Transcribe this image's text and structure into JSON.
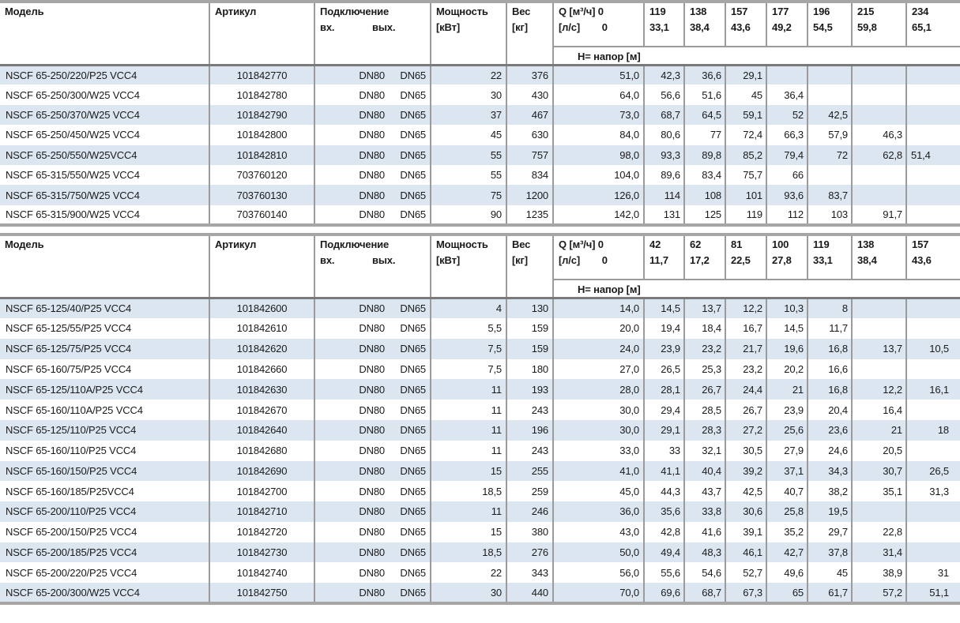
{
  "colors": {
    "band_row": "#dce6f1",
    "border_gray": "#a6a6a6",
    "border_dark": "#7a7a7a",
    "grid_line": "#9b9b9b"
  },
  "tables": [
    {
      "headers": {
        "model": "Модель",
        "article": "Артикул",
        "connection": "Подключение",
        "inlet": "вх.",
        "outlet": "вых.",
        "power": "Мощность",
        "power_unit": "[кВт]",
        "weight": "Вес",
        "weight_unit": "[кг]",
        "q_line1": "Q [м³/ч] 0",
        "q_line2": "[л/с]        0",
        "head_row": "Н= напор [м]"
      },
      "flow_columns": [
        {
          "m3h": "119",
          "ls": "33,1"
        },
        {
          "m3h": "138",
          "ls": "38,4"
        },
        {
          "m3h": "157",
          "ls": "43,6"
        },
        {
          "m3h": "177",
          "ls": "49,2"
        },
        {
          "m3h": "196",
          "ls": "54,5"
        },
        {
          "m3h": "215",
          "ls": "59,8"
        },
        {
          "m3h": "234",
          "ls": "65,1"
        }
      ],
      "rows": [
        {
          "model": "NSCF 65-250/220/P25 VCC4",
          "article": "101842770",
          "dn_in": "DN80",
          "dn_out": "DN65",
          "power": "22",
          "weight": "376",
          "q0": "51,0",
          "heads": [
            "42,3",
            "36,6",
            "29,1",
            "",
            "",
            "",
            ""
          ]
        },
        {
          "model": "NSCF 65-250/300/W25 VCC4",
          "article": "101842780",
          "dn_in": "DN80",
          "dn_out": "DN65",
          "power": "30",
          "weight": "430",
          "q0": "64,0",
          "heads": [
            "56,6",
            "51,6",
            "45",
            "36,4",
            "",
            "",
            ""
          ]
        },
        {
          "model": "NSCF 65-250/370/W25 VCC4",
          "article": "101842790",
          "dn_in": "DN80",
          "dn_out": "DN65",
          "power": "37",
          "weight": "467",
          "q0": "73,0",
          "heads": [
            "68,7",
            "64,5",
            "59,1",
            "52",
            "42,5",
            "",
            ""
          ]
        },
        {
          "model": "NSCF 65-250/450/W25 VCC4",
          "article": "101842800",
          "dn_in": "DN80",
          "dn_out": "DN65",
          "power": "45",
          "weight": "630",
          "q0": "84,0",
          "heads": [
            "80,6",
            "77",
            "72,4",
            "66,3",
            "57,9",
            "46,3",
            ""
          ]
        },
        {
          "model": "NSCF 65-250/550/W25VCC4",
          "article": "101842810",
          "dn_in": "DN80",
          "dn_out": "DN65",
          "power": "55",
          "weight": "757",
          "q0": "98,0",
          "heads": [
            "93,3",
            "89,8",
            "85,2",
            "79,4",
            "72",
            "62,8",
            "51,4"
          ]
        },
        {
          "model": "NSCF 65-315/550/W25 VCC4",
          "article": "703760120",
          "dn_in": "DN80",
          "dn_out": "DN65",
          "power": "55",
          "weight": "834",
          "q0": "104,0",
          "heads": [
            "89,6",
            "83,4",
            "75,7",
            "66",
            "",
            "",
            ""
          ]
        },
        {
          "model": "NSCF 65-315/750/W25 VCC4",
          "article": "703760130",
          "dn_in": "DN80",
          "dn_out": "DN65",
          "power": "75",
          "weight": "1200",
          "q0": "126,0",
          "heads": [
            "114",
            "108",
            "101",
            "93,6",
            "83,7",
            "",
            ""
          ]
        },
        {
          "model": "NSCF 65-315/900/W25 VCC4",
          "article": "703760140",
          "dn_in": "DN80",
          "dn_out": "DN65",
          "power": "90",
          "weight": "1235",
          "q0": "142,0",
          "heads": [
            "131",
            "125",
            "119",
            "112",
            "103",
            "91,7",
            ""
          ]
        }
      ]
    },
    {
      "headers": {
        "model": "Модель",
        "article": "Артикул",
        "connection": "Подключение",
        "inlet": "вх.",
        "outlet": "вых.",
        "power": "Мощность",
        "power_unit": "[кВт]",
        "weight": "Вес",
        "weight_unit": "[кг]",
        "q_line1": "Q [м³/ч] 0",
        "q_line2": "[л/с]        0",
        "head_row": "Н= напор [м]"
      },
      "flow_columns": [
        {
          "m3h": "42",
          "ls": "11,7"
        },
        {
          "m3h": "62",
          "ls": "17,2"
        },
        {
          "m3h": "81",
          "ls": "22,5"
        },
        {
          "m3h": "100",
          "ls": "27,8"
        },
        {
          "m3h": "119",
          "ls": "33,1"
        },
        {
          "m3h": "138",
          "ls": "38,4"
        },
        {
          "m3h": "157",
          "ls": "43,6"
        }
      ],
      "rows": [
        {
          "model": "NSCF 65-125/40/P25 VCC4",
          "article": "101842600",
          "dn_in": "DN80",
          "dn_out": "DN65",
          "power": "4",
          "weight": "130",
          "q0": "14,0",
          "heads": [
            "14,5",
            "13,7",
            "12,2",
            "10,3",
            "8",
            "",
            ""
          ]
        },
        {
          "model": "NSCF 65-125/55/P25 VCC4",
          "article": "101842610",
          "dn_in": "DN80",
          "dn_out": "DN65",
          "power": "5,5",
          "weight": "159",
          "q0": "20,0",
          "heads": [
            "19,4",
            "18,4",
            "16,7",
            "14,5",
            "11,7",
            "",
            ""
          ]
        },
        {
          "model": "NSCF 65-125/75/P25 VCC4",
          "article": "101842620",
          "dn_in": "DN80",
          "dn_out": "DN65",
          "power": "7,5",
          "weight": "159",
          "q0": "24,0",
          "heads": [
            "23,9",
            "23,2",
            "21,7",
            "19,6",
            "16,8",
            "13,7",
            "10,5"
          ]
        },
        {
          "model": "NSCF 65-160/75/P25 VCC4",
          "article": "101842660",
          "dn_in": "DN80",
          "dn_out": "DN65",
          "power": "7,5",
          "weight": "180",
          "q0": "27,0",
          "heads": [
            "26,5",
            "25,3",
            "23,2",
            "20,2",
            "16,6",
            "",
            ""
          ]
        },
        {
          "model": "NSCF 65-125/110A/P25 VCC4",
          "article": "101842630",
          "dn_in": "DN80",
          "dn_out": "DN65",
          "power": "11",
          "weight": "193",
          "q0": "28,0",
          "heads": [
            "28,1",
            "26,7",
            "24,4",
            "21",
            "16,8",
            "12,2",
            "16,1"
          ]
        },
        {
          "model": "NSCF 65-160/110A/P25 VCC4",
          "article": "101842670",
          "dn_in": "DN80",
          "dn_out": "DN65",
          "power": "11",
          "weight": "243",
          "q0": "30,0",
          "heads": [
            "29,4",
            "28,5",
            "26,7",
            "23,9",
            "20,4",
            "16,4",
            ""
          ]
        },
        {
          "model": "NSCF 65-125/110/P25 VCC4",
          "article": "101842640",
          "dn_in": "DN80",
          "dn_out": "DN65",
          "power": "11",
          "weight": "196",
          "q0": "30,0",
          "heads": [
            "29,1",
            "28,3",
            "27,2",
            "25,6",
            "23,6",
            "21",
            "18"
          ]
        },
        {
          "model": "NSCF 65-160/110/P25 VCC4",
          "article": "101842680",
          "dn_in": "DN80",
          "dn_out": "DN65",
          "power": "11",
          "weight": "243",
          "q0": "33,0",
          "heads": [
            "33",
            "32,1",
            "30,5",
            "27,9",
            "24,6",
            "20,5",
            ""
          ]
        },
        {
          "model": "NSCF 65-160/150/P25 VCC4",
          "article": "101842690",
          "dn_in": "DN80",
          "dn_out": "DN65",
          "power": "15",
          "weight": "255",
          "q0": "41,0",
          "heads": [
            "41,1",
            "40,4",
            "39,2",
            "37,1",
            "34,3",
            "30,7",
            "26,5"
          ]
        },
        {
          "model": "NSCF 65-160/185/P25VCC4",
          "article": "101842700",
          "dn_in": "DN80",
          "dn_out": "DN65",
          "power": "18,5",
          "weight": "259",
          "q0": "45,0",
          "heads": [
            "44,3",
            "43,7",
            "42,5",
            "40,7",
            "38,2",
            "35,1",
            "31,3"
          ]
        },
        {
          "model": "NSCF 65-200/110/P25 VCC4",
          "article": "101842710",
          "dn_in": "DN80",
          "dn_out": "DN65",
          "power": "11",
          "weight": "246",
          "q0": "36,0",
          "heads": [
            "35,6",
            "33,8",
            "30,6",
            "25,8",
            "19,5",
            "",
            ""
          ]
        },
        {
          "model": "NSCF 65-200/150/P25 VCC4",
          "article": "101842720",
          "dn_in": "DN80",
          "dn_out": "DN65",
          "power": "15",
          "weight": "380",
          "q0": "43,0",
          "heads": [
            "42,8",
            "41,6",
            "39,1",
            "35,2",
            "29,7",
            "22,8",
            ""
          ]
        },
        {
          "model": "NSCF 65-200/185/P25 VCC4",
          "article": "101842730",
          "dn_in": "DN80",
          "dn_out": "DN65",
          "power": "18,5",
          "weight": "276",
          "q0": "50,0",
          "heads": [
            "49,4",
            "48,3",
            "46,1",
            "42,7",
            "37,8",
            "31,4",
            ""
          ]
        },
        {
          "model": "NSCF 65-200/220/P25 VCC4",
          "article": "101842740",
          "dn_in": "DN80",
          "dn_out": "DN65",
          "power": "22",
          "weight": "343",
          "q0": "56,0",
          "heads": [
            "55,6",
            "54,6",
            "52,7",
            "49,6",
            "45",
            "38,9",
            "31"
          ]
        },
        {
          "model": "NSCF 65-200/300/W25 VCC4",
          "article": "101842750",
          "dn_in": "DN80",
          "dn_out": "DN65",
          "power": "30",
          "weight": "440",
          "q0": "70,0",
          "heads": [
            "69,6",
            "68,7",
            "67,3",
            "65",
            "61,7",
            "57,2",
            "51,1"
          ]
        }
      ]
    }
  ]
}
